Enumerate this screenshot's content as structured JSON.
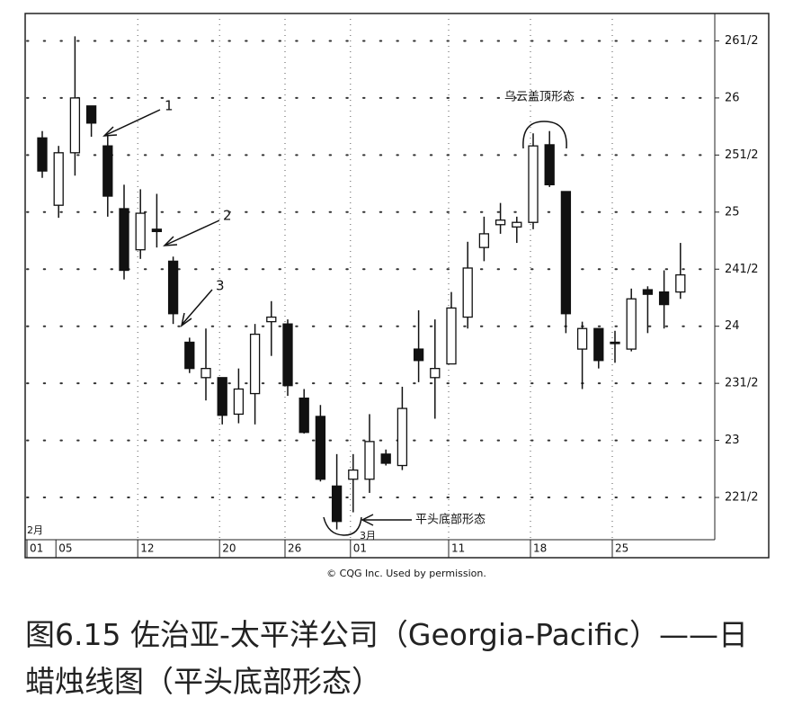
{
  "chart_data": {
    "type": "candlestick",
    "categories": [
      "01",
      "05",
      null,
      null,
      null,
      null,
      "12",
      null,
      null,
      null,
      null,
      "20",
      null,
      null,
      null,
      "26",
      null,
      null,
      null,
      "01",
      null,
      null,
      null,
      null,
      null,
      "11",
      null,
      null,
      null,
      null,
      "18",
      null,
      null,
      null,
      null,
      "25",
      null,
      null,
      null,
      null
    ],
    "open": [
      25.65,
      25.06,
      25.52,
      25.93,
      25.58,
      25.03,
      24.67,
      24.85,
      24.57,
      23.86,
      23.55,
      23.55,
      23.23,
      23.41,
      24.04,
      24.02,
      23.37,
      23.21,
      22.6,
      22.66,
      22.66,
      22.88,
      22.78,
      23.8,
      23.55,
      23.67,
      24.08,
      24.69,
      24.89,
      24.87,
      24.91,
      25.59,
      25.18,
      23.8,
      23.98,
      23.86,
      23.8,
      24.32,
      24.3,
      24.3
    ],
    "high": [
      25.71,
      25.58,
      26.54,
      25.93,
      25.67,
      25.24,
      25.2,
      25.16,
      24.61,
      23.9,
      23.98,
      23.55,
      23.63,
      24.02,
      24.22,
      24.06,
      23.45,
      23.31,
      22.88,
      22.88,
      23.23,
      22.92,
      23.47,
      24.14,
      24.06,
      24.3,
      24.74,
      24.96,
      25.08,
      24.96,
      25.69,
      25.71,
      25.18,
      24.04,
      23.98,
      23.96,
      24.33,
      24.35,
      24.49,
      24.73
    ],
    "low": [
      25.3,
      24.95,
      25.32,
      25.66,
      24.96,
      24.41,
      24.59,
      24.69,
      24.02,
      23.59,
      23.35,
      23.14,
      23.15,
      23.14,
      23.74,
      23.39,
      23.06,
      22.64,
      22.22,
      22.37,
      22.54,
      22.78,
      22.74,
      23.51,
      23.19,
      23.67,
      23.98,
      24.57,
      24.81,
      24.73,
      24.85,
      25.22,
      23.94,
      23.45,
      23.63,
      23.68,
      23.78,
      23.94,
      23.98,
      24.24
    ],
    "close": [
      25.36,
      25.52,
      26.0,
      25.78,
      25.14,
      24.49,
      24.99,
      24.83,
      24.11,
      23.63,
      23.63,
      23.22,
      23.45,
      23.93,
      24.08,
      23.48,
      23.07,
      22.66,
      22.29,
      22.74,
      22.99,
      22.8,
      23.28,
      23.7,
      23.63,
      24.16,
      24.51,
      24.81,
      24.93,
      24.91,
      25.58,
      25.24,
      24.11,
      23.98,
      23.7,
      23.85,
      24.24,
      24.28,
      24.19,
      24.45
    ],
    "up_color": "#ffffff",
    "down_color": "#111111",
    "ylim": [
      22.13,
      26.74
    ],
    "yticks": [
      {
        "value": 22.5,
        "label": "221/2"
      },
      23,
      {
        "value": 23.5,
        "label": "231/2"
      },
      24,
      {
        "value": 24.5,
        "label": "241/2"
      },
      25,
      {
        "value": 25.5,
        "label": "251/2"
      },
      26,
      {
        "value": 26.5,
        "label": "261/2"
      }
    ],
    "grid": true,
    "months": [
      "2月",
      "3月"
    ],
    "annotations": [
      "1",
      "2",
      "3",
      "乌云盖顶形态",
      "平头底部形态"
    ],
    "source": "© CQG Inc. Used by permission.",
    "caption": "图6.15 佐治亚-太平洋公司（Georgia-Pacific）——日蜡烛线图（平头底部形态）"
  }
}
